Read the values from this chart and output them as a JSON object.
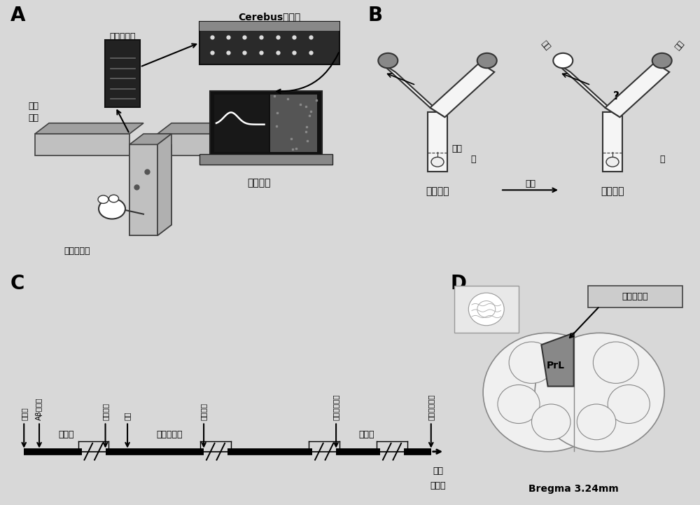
{
  "bg_color": "#d8d8d8",
  "panel_A": {
    "label": "A",
    "preamp_label": "前置放大器",
    "cerebus_label": "Cerebus记录仪",
    "neural_label": "神经\n信息",
    "infrared_label": "红外探测器",
    "data_label": "数据分析"
  },
  "panel_B": {
    "label": "B",
    "infrared": "红外",
    "door": "门",
    "free_choice": "自由选择",
    "delay": "延迟",
    "alt_choice": "交替选择",
    "wrong": "错误",
    "question": "?",
    "correct": "正确"
  },
  "panel_C": {
    "label": "C",
    "arrow_labels": [
      "正常组",
      "Aβ注射组",
      "开始适应",
      "控食",
      "迷管适用",
      "慢性植入手术",
      "开始记录数据"
    ],
    "phase_labels": [
      "恢复期",
      "行为学训练",
      "恢复期"
    ],
    "time_label": "时间",
    "time_unit": "（天）"
  },
  "panel_D": {
    "label": "D",
    "region_label": "前额叶皮层",
    "prl_label": "PrL",
    "bregma_label": "Bregma 3.24mm"
  }
}
